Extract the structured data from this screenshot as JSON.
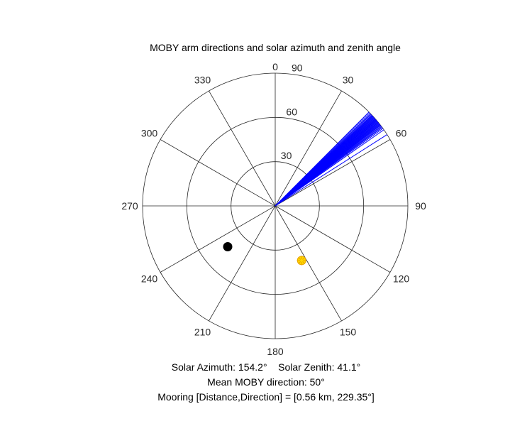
{
  "chart_data": {
    "type": "polar",
    "title": "MOBY arm directions and solar azimuth and zenith angle",
    "theta_ticks": [
      "0",
      "30",
      "60",
      "90",
      "120",
      "150",
      "180",
      "210",
      "240",
      "270",
      "300",
      "330"
    ],
    "theta_tick_values": [
      0,
      30,
      60,
      90,
      120,
      150,
      180,
      210,
      240,
      270,
      300,
      330
    ],
    "r_ticks": [
      "30",
      "60",
      "90"
    ],
    "r_tick_values": [
      30,
      60,
      90
    ],
    "rlim": [
      0,
      90
    ],
    "theta_direction": "clockwise",
    "theta_zero": "top",
    "series": [
      {
        "kind": "arm_directions",
        "color": "#0000ff",
        "radius": 90,
        "angles": [
          45.0,
          45.5,
          46.0,
          46.4,
          46.8,
          47.1,
          47.4,
          47.7,
          48.0,
          48.3,
          48.6,
          48.9,
          49.2,
          49.5,
          49.7,
          50.0,
          50.2,
          50.5,
          50.8,
          51.1,
          51.4,
          51.7,
          52.0,
          52.3,
          52.6,
          53.0,
          53.4,
          53.8,
          54.3,
          55.0,
          57.5
        ]
      },
      {
        "kind": "sun",
        "color": "#ffd700",
        "edge_color": "#e8a400",
        "azimuth": 154.2,
        "zenith": 41.1
      },
      {
        "kind": "mooring",
        "color": "#000000",
        "direction": 229.35,
        "radius": 42.5
      }
    ]
  },
  "captions": {
    "solar": "Solar Azimuth: 154.2°    Solar Zenith: 41.1°",
    "mean_direction": "Mean MOBY direction: 50°",
    "mooring": "Mooring [Distance,Direction] = [0.56 km, 229.35°]"
  }
}
